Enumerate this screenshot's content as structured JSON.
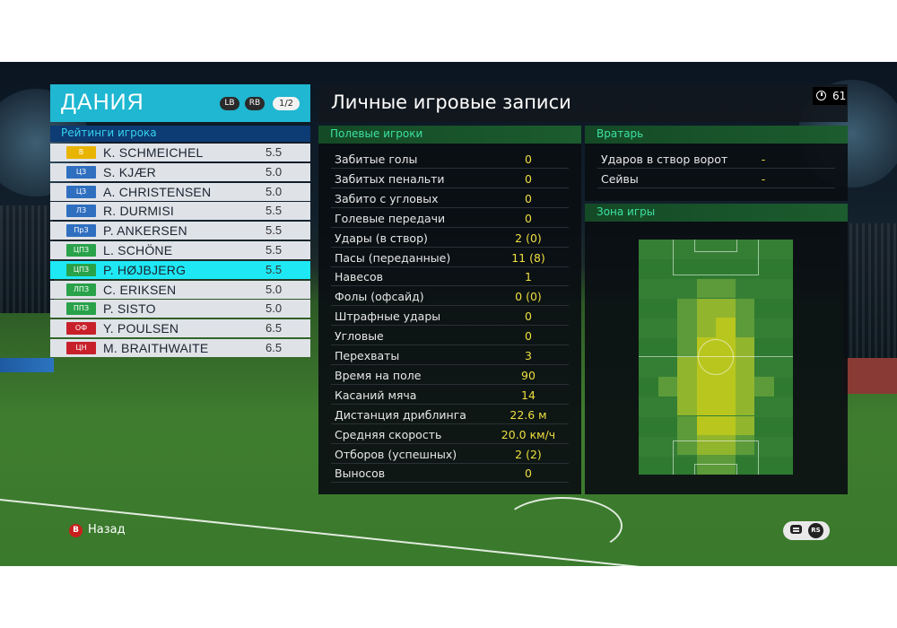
{
  "team": {
    "name": "ДАНИЯ",
    "lb_label": "LB",
    "rb_label": "RB",
    "page": "1/2",
    "ratings_title": "Рейтинги игрока"
  },
  "players": [
    {
      "pos": "В",
      "pos_color": "#e8b400",
      "name": "K. SCHMEICHEL",
      "rating": "5.5"
    },
    {
      "pos": "ЦЗ",
      "pos_color": "#2f6fc0",
      "name": "S. KJÆR",
      "rating": "5.0"
    },
    {
      "pos": "ЦЗ",
      "pos_color": "#2f6fc0",
      "name": "A. CHRISTENSEN",
      "rating": "5.0"
    },
    {
      "pos": "ЛЗ",
      "pos_color": "#2f6fc0",
      "name": "R. DURMISI",
      "rating": "5.5"
    },
    {
      "pos": "ПрЗ",
      "pos_color": "#2f6fc0",
      "name": "P. ANKERSEN",
      "rating": "5.5"
    },
    {
      "pos": "ЦПЗ",
      "pos_color": "#29a24a",
      "name": "L. SCHÖNE",
      "rating": "5.5"
    },
    {
      "pos": "ЦПЗ",
      "pos_color": "#29a24a",
      "name": "P. HØJBJERG",
      "rating": "5.5",
      "selected": true
    },
    {
      "pos": "ЛПЗ",
      "pos_color": "#29a24a",
      "name": "C. ERIKSEN",
      "rating": "5.0"
    },
    {
      "pos": "ППЗ",
      "pos_color": "#29a24a",
      "name": "P. SISTO",
      "rating": "5.0"
    },
    {
      "pos": "ОФ",
      "pos_color": "#c8202a",
      "name": "Y. POULSEN",
      "rating": "6.5"
    },
    {
      "pos": "ЦН",
      "pos_color": "#c8202a",
      "name": "M. BRAITHWAITE",
      "rating": "6.5"
    }
  ],
  "records": {
    "title": "Личные игровые записи",
    "timer": "61",
    "field_players_title": "Полевые игроки",
    "field_stats": [
      {
        "label": "Забитые голы",
        "value": "0"
      },
      {
        "label": "Забитых пенальти",
        "value": "0"
      },
      {
        "label": "Забито с угловых",
        "value": "0"
      },
      {
        "label": "Голевые передачи",
        "value": "0"
      },
      {
        "label": "Удары (в створ)",
        "value": "2 (0)"
      },
      {
        "label": "Пасы (переданные)",
        "value": "11 (8)"
      },
      {
        "label": "Навесов",
        "value": "1"
      },
      {
        "label": "Фолы (офсайд)",
        "value": "0 (0)"
      },
      {
        "label": "Штрафные удары",
        "value": "0"
      },
      {
        "label": "Угловые",
        "value": "0"
      },
      {
        "label": "Перехваты",
        "value": "3"
      },
      {
        "label": "Время на поле",
        "value": "90"
      },
      {
        "label": "Касаний мяча",
        "value": "14"
      },
      {
        "label": "Дистанция дриблинга",
        "value": "22.6 м"
      },
      {
        "label": "Средняя скорость",
        "value": "20.0 км/ч"
      },
      {
        "label": "Отборов (успешных)",
        "value": "2 (2)"
      },
      {
        "label": "Выносов",
        "value": "0"
      }
    ],
    "goalkeeper_title": "Вратарь",
    "goalkeeper_stats": [
      {
        "label": "Ударов в створ ворот",
        "value": "-"
      },
      {
        "label": "Сейвы",
        "value": "-"
      }
    ],
    "zone_title": "Зона игры"
  },
  "controls": {
    "back_key": "B",
    "back_label": "Назад",
    "rs_key": "RS"
  }
}
